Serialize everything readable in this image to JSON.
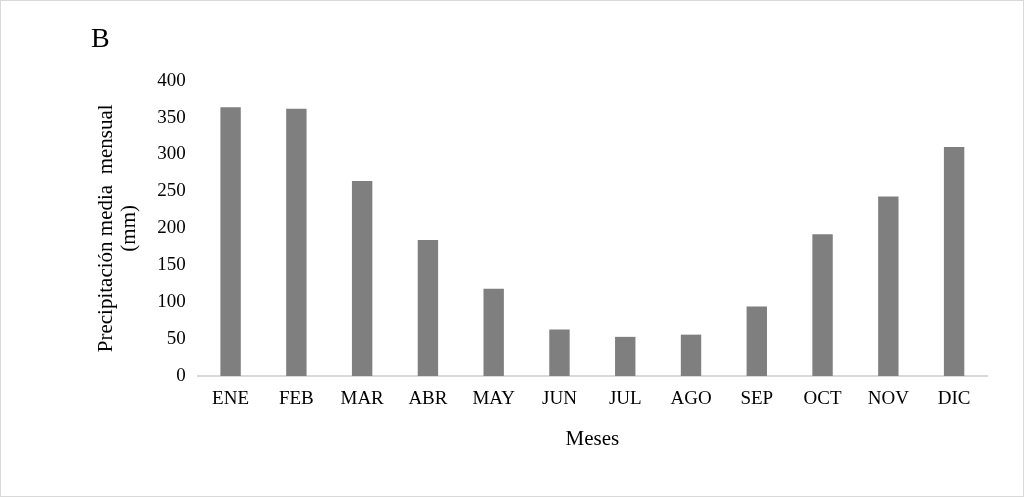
{
  "chart_data": {
    "type": "bar",
    "title": "B",
    "xlabel": "Meses",
    "ylabel": "Precipitación media  mensual\n(mm)",
    "categories": [
      "ENE",
      "FEB",
      "MAR",
      "ABR",
      "MAY",
      "JUN",
      "JUL",
      "AGO",
      "SEP",
      "OCT",
      "NOV",
      "DIC"
    ],
    "values": [
      364,
      362,
      264,
      184,
      118,
      63,
      53,
      56,
      94,
      192,
      243,
      310
    ],
    "color": "#7f7f7f",
    "ylim": [
      0,
      400
    ],
    "yticks": [
      0,
      50,
      100,
      150,
      200,
      250,
      300,
      350,
      400
    ],
    "grid": false,
    "legend": false
  }
}
